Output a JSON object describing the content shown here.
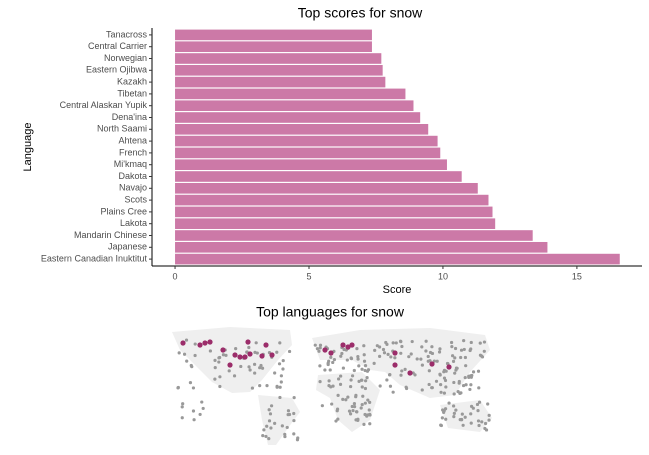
{
  "chart_data": [
    {
      "type": "bar",
      "orientation": "horizontal",
      "title": "Top scores for snow",
      "x_label": "Score",
      "y_label": "Language",
      "categories": [
        "Tanacross",
        "Central Carrier",
        "Norwegian",
        "Eastern Ojibwa",
        "Kazakh",
        "Tibetan",
        "Central Alaskan Yupik",
        "Dena'ina",
        "North Saami",
        "Ahtena",
        "French",
        "Mi'kmaq",
        "Dakota",
        "Navajo",
        "Scots",
        "Plains Cree",
        "Lakota",
        "Mandarin Chinese",
        "Japanese",
        "Eastern Canadian Inuktitut"
      ],
      "values": [
        7.35,
        7.35,
        7.7,
        7.75,
        7.85,
        8.6,
        8.9,
        9.15,
        9.45,
        9.8,
        9.9,
        10.15,
        10.7,
        11.3,
        11.7,
        11.85,
        11.95,
        13.35,
        13.9,
        16.6
      ],
      "color": "#cc79a7",
      "xlim": [
        -0.86,
        17.43
      ],
      "xticks": [
        0,
        5,
        10,
        15
      ]
    },
    {
      "type": "map",
      "title": "Top languages for snow",
      "color": "#9b2d6a",
      "base_color": "#999999"
    }
  ]
}
